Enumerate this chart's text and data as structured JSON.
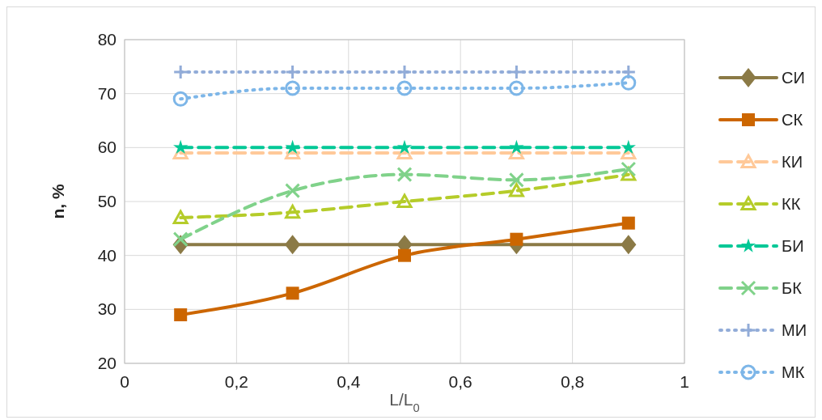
{
  "chart_data": {
    "type": "line",
    "xlabel": "L/L$_{0}$",
    "ylabel": "n, %",
    "x": [
      0.1,
      0.3,
      0.5,
      0.7,
      0.9
    ],
    "xlim": [
      0,
      1
    ],
    "xticks": [
      0,
      {
        "value": 0.2,
        "label": "0,2"
      },
      {
        "value": 0.4,
        "label": "0,4"
      },
      {
        "value": 0.6,
        "label": "0,6"
      },
      {
        "value": 0.8,
        "label": "0,8"
      },
      1
    ],
    "ylim": [
      20,
      80
    ],
    "yticks": [
      20,
      30,
      40,
      50,
      60,
      70,
      80
    ],
    "grid": true,
    "legend": "right",
    "series": [
      {
        "name": "СИ",
        "color": "#8b7a46",
        "marker": "diamond",
        "line_style": "solid",
        "values": [
          42,
          42,
          42,
          42,
          42
        ]
      },
      {
        "name": "СК",
        "color": "#cc6600",
        "marker": "square",
        "line_style": "solid",
        "values": [
          29,
          33,
          40,
          43,
          46
        ]
      },
      {
        "name": "КИ",
        "color": "#ffc999",
        "marker": "triangle",
        "line_style": "dashed",
        "values": [
          59,
          59,
          59,
          59,
          59
        ]
      },
      {
        "name": "КК",
        "color": "#b5cc2a",
        "marker": "triangle",
        "line_style": "dashed",
        "values": [
          47,
          48,
          50,
          52,
          55
        ]
      },
      {
        "name": "БИ",
        "color": "#00c896",
        "marker": "star",
        "line_style": "dashed",
        "values": [
          60,
          60,
          60,
          60,
          60
        ]
      },
      {
        "name": "БК",
        "color": "#80d28a",
        "marker": "cross",
        "line_style": "dashed",
        "values": [
          43,
          52,
          55,
          54,
          56
        ]
      },
      {
        "name": "МИ",
        "color": "#92acd8",
        "marker": "plus",
        "line_style": "dotted",
        "values": [
          74,
          74,
          74,
          74,
          74
        ]
      },
      {
        "name": "МК",
        "color": "#7db6e8",
        "marker": "circle",
        "line_style": "dotted",
        "values": [
          69,
          71,
          71,
          71,
          72
        ]
      }
    ]
  }
}
